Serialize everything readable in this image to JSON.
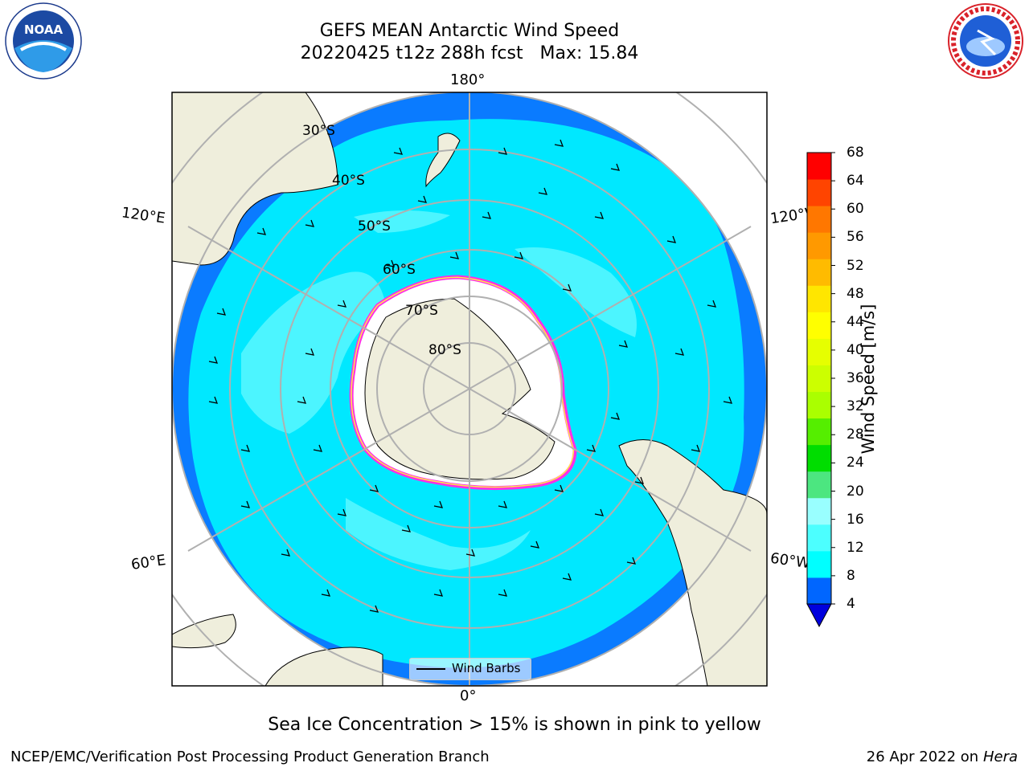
{
  "title": {
    "line1": "GEFS MEAN Antarctic Wind Speed",
    "line2": "20220425 t12z 288h fcst   Max: 15.84"
  },
  "map": {
    "projection": "south-polar-stereographic",
    "longitude_labels": {
      "top": "180°",
      "bottom": "0°",
      "left_upper": "120°E",
      "right_upper": "120°W",
      "left_lower": "60°E",
      "right_lower": "60°W"
    },
    "latitude_labels": [
      "30°S",
      "40°S",
      "50°S",
      "60°S",
      "70°S",
      "80°S"
    ],
    "legend": {
      "label": "Wind Barbs"
    },
    "colors": {
      "ocean_4_8": "#0a7bff",
      "ocean_8_12": "#00e8ff",
      "ocean_12_16": "#4cf5ff",
      "land": "#efeedc",
      "ice_edge": "#ff2ee5",
      "ice_inner": "#ffe94a"
    }
  },
  "colorbar": {
    "label": "Wind Speed [m/s]",
    "ticks": [
      "68",
      "64",
      "60",
      "56",
      "52",
      "48",
      "44",
      "40",
      "36",
      "32",
      "28",
      "24",
      "20",
      "16",
      "12",
      "8",
      "4"
    ],
    "colors_bottom_to_top": [
      "#0066ff",
      "#00ffff",
      "#4cffff",
      "#99ffff",
      "#4ce680",
      "#00dd00",
      "#55ee00",
      "#aaff00",
      "#ccff00",
      "#e6ff00",
      "#ffff00",
      "#ffe600",
      "#ffbb00",
      "#ff9900",
      "#ff7700",
      "#ff4400",
      "#ff0000"
    ],
    "extend_color": "#0000dd"
  },
  "note": "Sea Ice Concentration > 15% is shown in pink to yellow",
  "footer": {
    "left": "NCEP/EMC/Verification Post Processing Product Generation Branch",
    "right_date": "26 Apr 2022 on ",
    "right_host": "Hera"
  },
  "logos": {
    "left": "NOAA",
    "right": "NATIONAL WEATHER SERVICE"
  }
}
